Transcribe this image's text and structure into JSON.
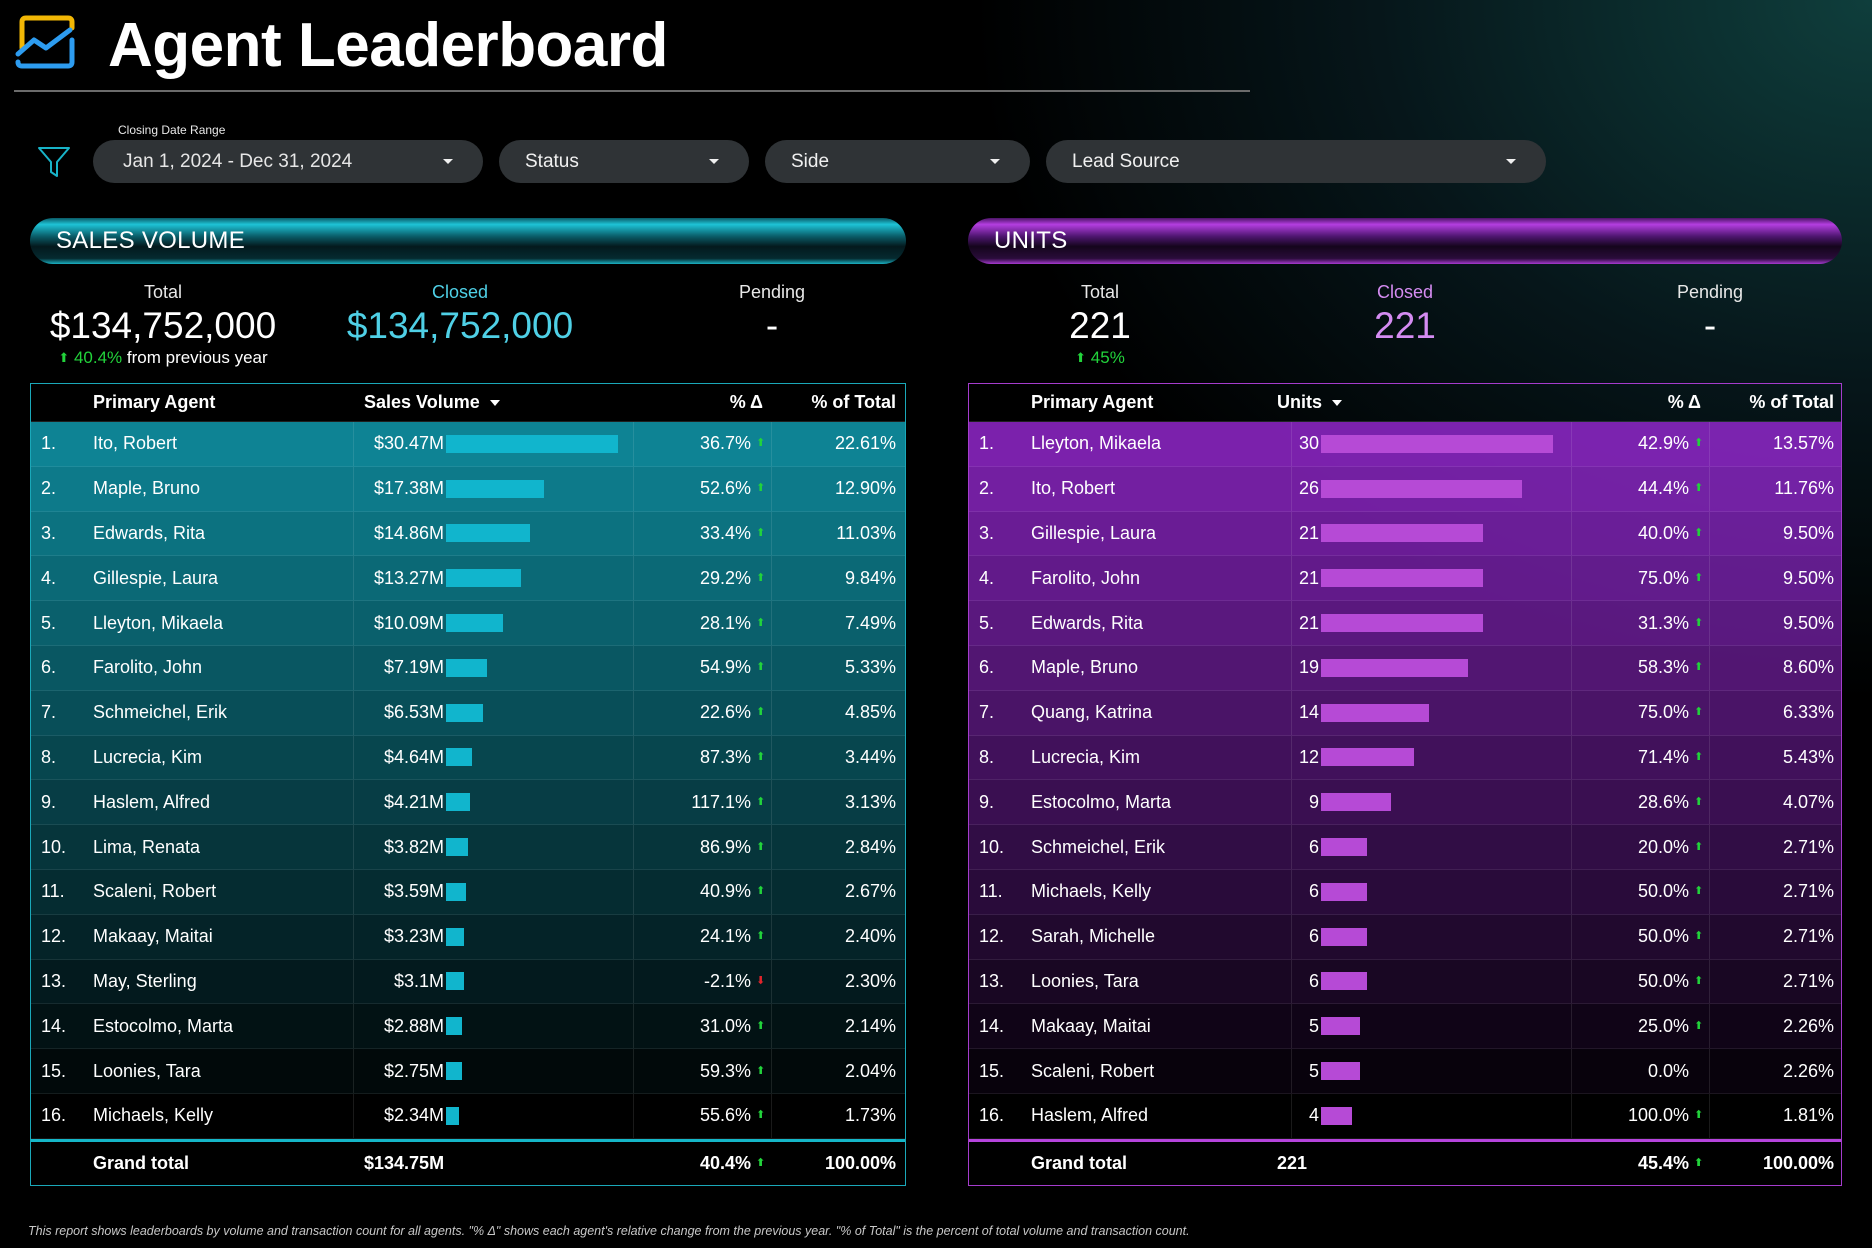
{
  "header": {
    "title": "Agent Leaderboard",
    "logo_icon": "trend-chart-icon"
  },
  "filters": {
    "caption": "Closing Date Range",
    "date_range": "Jan 1, 2024 - Dec 31, 2024",
    "status": "Status",
    "side": "Side",
    "lead_source": "Lead Source"
  },
  "sales": {
    "title": "SALES VOLUME",
    "kpi": {
      "total_label": "Total",
      "total_value": "$134,752,000",
      "change_value": "40.4%",
      "change_text": "from previous year",
      "closed_label": "Closed",
      "closed_value": "$134,752,000",
      "pending_label": "Pending",
      "pending_value": "-"
    },
    "columns": {
      "agent": "Primary Agent",
      "metric": "Sales Volume",
      "delta": "% Δ",
      "share": "% of Total"
    },
    "max_value": 30.47,
    "rows": [
      {
        "rank": "1.",
        "agent": "Ito, Robert",
        "display": "$30.47M",
        "value": 30.47,
        "delta": "36.7%",
        "dir": "up",
        "share": "22.61%"
      },
      {
        "rank": "2.",
        "agent": "Maple, Bruno",
        "display": "$17.38M",
        "value": 17.38,
        "delta": "52.6%",
        "dir": "up",
        "share": "12.90%"
      },
      {
        "rank": "3.",
        "agent": "Edwards, Rita",
        "display": "$14.86M",
        "value": 14.86,
        "delta": "33.4%",
        "dir": "up",
        "share": "11.03%"
      },
      {
        "rank": "4.",
        "agent": "Gillespie, Laura",
        "display": "$13.27M",
        "value": 13.27,
        "delta": "29.2%",
        "dir": "up",
        "share": "9.84%"
      },
      {
        "rank": "5.",
        "agent": "Lleyton, Mikaela",
        "display": "$10.09M",
        "value": 10.09,
        "delta": "28.1%",
        "dir": "up",
        "share": "7.49%"
      },
      {
        "rank": "6.",
        "agent": "Farolito, John",
        "display": "$7.19M",
        "value": 7.19,
        "delta": "54.9%",
        "dir": "up",
        "share": "5.33%"
      },
      {
        "rank": "7.",
        "agent": "Schmeichel, Erik",
        "display": "$6.53M",
        "value": 6.53,
        "delta": "22.6%",
        "dir": "up",
        "share": "4.85%"
      },
      {
        "rank": "8.",
        "agent": "Lucrecia, Kim",
        "display": "$4.64M",
        "value": 4.64,
        "delta": "87.3%",
        "dir": "up",
        "share": "3.44%"
      },
      {
        "rank": "9.",
        "agent": "Haslem, Alfred",
        "display": "$4.21M",
        "value": 4.21,
        "delta": "117.1%",
        "dir": "up",
        "share": "3.13%"
      },
      {
        "rank": "10.",
        "agent": "Lima, Renata",
        "display": "$3.82M",
        "value": 3.82,
        "delta": "86.9%",
        "dir": "up",
        "share": "2.84%"
      },
      {
        "rank": "11.",
        "agent": "Scaleni, Robert",
        "display": "$3.59M",
        "value": 3.59,
        "delta": "40.9%",
        "dir": "up",
        "share": "2.67%"
      },
      {
        "rank": "12.",
        "agent": "Makaay, Maitai",
        "display": "$3.23M",
        "value": 3.23,
        "delta": "24.1%",
        "dir": "up",
        "share": "2.40%"
      },
      {
        "rank": "13.",
        "agent": "May, Sterling",
        "display": "$3.1M",
        "value": 3.1,
        "delta": "-2.1%",
        "dir": "down",
        "share": "2.30%"
      },
      {
        "rank": "14.",
        "agent": "Estocolmo, Marta",
        "display": "$2.88M",
        "value": 2.88,
        "delta": "31.0%",
        "dir": "up",
        "share": "2.14%"
      },
      {
        "rank": "15.",
        "agent": "Loonies, Tara",
        "display": "$2.75M",
        "value": 2.75,
        "delta": "59.3%",
        "dir": "up",
        "share": "2.04%"
      },
      {
        "rank": "16.",
        "agent": "Michaels, Kelly",
        "display": "$2.34M",
        "value": 2.34,
        "delta": "55.6%",
        "dir": "up",
        "share": "1.73%"
      }
    ],
    "grand": {
      "label": "Grand total",
      "metric": "$134.75M",
      "delta": "40.4%",
      "share": "100.00%"
    }
  },
  "units": {
    "title": "UNITS",
    "kpi": {
      "total_label": "Total",
      "total_value": "221",
      "change_value": "45%",
      "change_text": "",
      "closed_label": "Closed",
      "closed_value": "221",
      "pending_label": "Pending",
      "pending_value": "-"
    },
    "columns": {
      "agent": "Primary Agent",
      "metric": "Units",
      "delta": "% Δ",
      "share": "% of Total"
    },
    "max_value": 30,
    "rows": [
      {
        "rank": "1.",
        "agent": "Lleyton, Mikaela",
        "display": "30",
        "value": 30,
        "delta": "42.9%",
        "dir": "up",
        "share": "13.57%"
      },
      {
        "rank": "2.",
        "agent": "Ito, Robert",
        "display": "26",
        "value": 26,
        "delta": "44.4%",
        "dir": "up",
        "share": "11.76%"
      },
      {
        "rank": "3.",
        "agent": "Gillespie, Laura",
        "display": "21",
        "value": 21,
        "delta": "40.0%",
        "dir": "up",
        "share": "9.50%"
      },
      {
        "rank": "4.",
        "agent": "Farolito, John",
        "display": "21",
        "value": 21,
        "delta": "75.0%",
        "dir": "up",
        "share": "9.50%"
      },
      {
        "rank": "5.",
        "agent": "Edwards, Rita",
        "display": "21",
        "value": 21,
        "delta": "31.3%",
        "dir": "up",
        "share": "9.50%"
      },
      {
        "rank": "6.",
        "agent": "Maple, Bruno",
        "display": "19",
        "value": 19,
        "delta": "58.3%",
        "dir": "up",
        "share": "8.60%"
      },
      {
        "rank": "7.",
        "agent": "Quang, Katrina",
        "display": "14",
        "value": 14,
        "delta": "75.0%",
        "dir": "up",
        "share": "6.33%"
      },
      {
        "rank": "8.",
        "agent": "Lucrecia, Kim",
        "display": "12",
        "value": 12,
        "delta": "71.4%",
        "dir": "up",
        "share": "5.43%"
      },
      {
        "rank": "9.",
        "agent": "Estocolmo, Marta",
        "display": "9",
        "value": 9,
        "delta": "28.6%",
        "dir": "up",
        "share": "4.07%"
      },
      {
        "rank": "10.",
        "agent": "Schmeichel, Erik",
        "display": "6",
        "value": 6,
        "delta": "20.0%",
        "dir": "up",
        "share": "2.71%"
      },
      {
        "rank": "11.",
        "agent": "Michaels, Kelly",
        "display": "6",
        "value": 6,
        "delta": "50.0%",
        "dir": "up",
        "share": "2.71%"
      },
      {
        "rank": "12.",
        "agent": "Sarah, Michelle",
        "display": "6",
        "value": 6,
        "delta": "50.0%",
        "dir": "up",
        "share": "2.71%"
      },
      {
        "rank": "13.",
        "agent": "Loonies, Tara",
        "display": "6",
        "value": 6,
        "delta": "50.0%",
        "dir": "up",
        "share": "2.71%"
      },
      {
        "rank": "14.",
        "agent": "Makaay, Maitai",
        "display": "5",
        "value": 5,
        "delta": "25.0%",
        "dir": "up",
        "share": "2.26%"
      },
      {
        "rank": "15.",
        "agent": "Scaleni, Robert",
        "display": "5",
        "value": 5,
        "delta": "0.0%",
        "dir": "none",
        "share": "2.26%"
      },
      {
        "rank": "16.",
        "agent": "Haslem, Alfred",
        "display": "4",
        "value": 4,
        "delta": "100.0%",
        "dir": "up",
        "share": "1.81%"
      }
    ],
    "grand": {
      "label": "Grand total",
      "metric": "221",
      "delta": "45.4%",
      "share": "100.00%"
    }
  },
  "colors": {
    "sales_accent": "#11b5cd",
    "units_accent": "#b64ad6",
    "closed_sales": "#4fd0e6",
    "closed_units": "#d58cf2",
    "up": "#22d33b",
    "down": "#e0242b"
  },
  "footnote": "This report shows leaderboards by volume and transaction count for all agents. \"% Δ\" shows each agent's relative change from the previous year. \"% of Total\" is the percent of total volume and transaction count."
}
